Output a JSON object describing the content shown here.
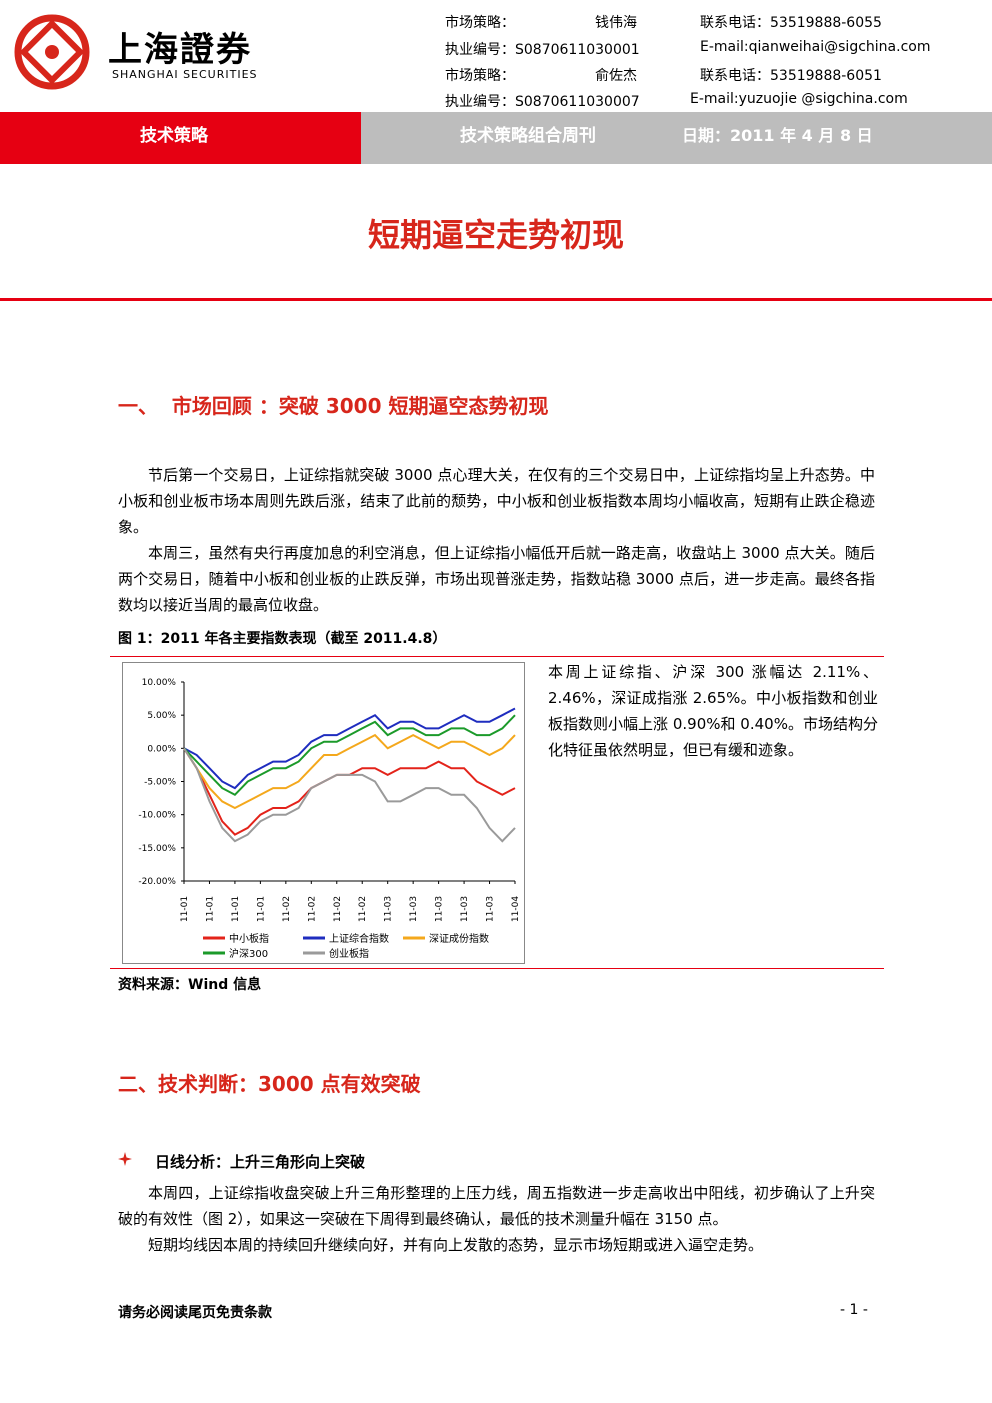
{
  "header": {
    "logo": "上海證券",
    "logo_en": "SHANGHAI SECURITIES",
    "contacts": [
      [
        "市场策略：",
        "钱伟海",
        "联系电话：53519888-6055"
      ],
      [
        "执业编号：S0870611030001",
        "",
        "E-mail:qianweihai@sigchina.com"
      ],
      [
        "市场策略：",
        "俞佐杰",
        "联系电话：53519888-6051"
      ],
      [
        "执业编号：S0870611030007",
        "",
        "E-mail:yuzuojie @sigchina.com"
      ]
    ]
  },
  "banner": {
    "left": "技术策略",
    "middle": "技术策略组合周刊",
    "date": "日期：2011 年 4 月 8 日"
  },
  "title": "短期逼空走势初现",
  "section1": {
    "heading": "一、  市场回顾 ：突破 3000 短期逼空态势初现",
    "paragraphs": [
      "节后第一个交易日，上证综指就突破 3000 点心理大关，在仅有的三个交易日中，上证综指均呈上升态势。中小板和创业板市场本周则先跌后涨，结束了此前的颓势，中小板和创业板指数本周均小幅收高，短期有止跌企稳迹象。",
      "本周三，虽然有央行再度加息的利空消息，但上证综指小幅低开后就一路走高，收盘站上 3000 点大关。随后两个交易日，随着中小板和创业板的止跌反弹，市场出现普涨走势，指数站稳 3000 点后，进一步走高。最终各指数均以接近当周的最高位收盘。"
    ],
    "figure_caption": "图 1：2011 年各主要指数表现（截至 2011.4.8）",
    "side_text": "本周上证综指、沪深 300 涨幅达 2.11%、2.46%，深证成指涨 2.65%。中小板指数和创业板指数则小幅上涨 0.90%和 0.40%。市场结构分化特征虽依然明显，但已有缓和迹象。",
    "source": "资料来源：Wind 信息"
  },
  "chart_data": {
    "type": "line",
    "categories": [
      "11-01",
      null,
      "11-01",
      null,
      "11-01",
      null,
      "11-01",
      null,
      "11-02",
      null,
      "11-02",
      null,
      "11-02",
      null,
      "11-02",
      null,
      "11-03",
      null,
      "11-03",
      null,
      "11-03",
      null,
      "11-03",
      null,
      "11-03",
      null,
      "11-04"
    ],
    "ylim": [
      -20,
      10
    ],
    "yticks": [
      {
        "value": -20,
        "label": "-20.00%"
      },
      {
        "value": -15,
        "label": "-15.00%"
      },
      {
        "value": -10,
        "label": "-10.00%"
      },
      {
        "value": -5,
        "label": "-5.00%"
      },
      {
        "value": 0,
        "label": "0.00%"
      },
      {
        "value": 5,
        "label": "5.00%"
      },
      {
        "value": 10,
        "label": "10.00%"
      }
    ],
    "series": [
      {
        "name": "中小板指",
        "color": "#e3231a",
        "values": [
          0,
          -3,
          -7,
          -11,
          -13,
          -12,
          -10,
          -9,
          -9,
          -8,
          -6,
          -5,
          -4,
          -4,
          -3,
          -3,
          -4,
          -3,
          -3,
          -3,
          -2,
          -3,
          -3,
          -5,
          -6,
          -7,
          -6
        ]
      },
      {
        "name": "上证综合指数",
        "color": "#1f2dbf",
        "values": [
          0,
          -1,
          -3,
          -5,
          -6,
          -4,
          -3,
          -2,
          -2,
          -1,
          1,
          2,
          2,
          3,
          4,
          5,
          3,
          4,
          4,
          3,
          3,
          4,
          5,
          4,
          4,
          5,
          6
        ]
      },
      {
        "name": "深证成份指数",
        "color": "#f4a81c",
        "values": [
          0,
          -3,
          -6,
          -8,
          -9,
          -8,
          -7,
          -6,
          -6,
          -5,
          -3,
          -1,
          -1,
          0,
          1,
          2,
          0,
          1,
          2,
          1,
          0,
          1,
          1,
          0,
          -1,
          0,
          2
        ]
      },
      {
        "name": "沪深300",
        "color": "#1b9a2a",
        "values": [
          0,
          -2,
          -4,
          -6,
          -7,
          -5,
          -4,
          -3,
          -3,
          -2,
          0,
          1,
          1,
          2,
          3,
          4,
          2,
          3,
          3,
          2,
          2,
          3,
          3,
          2,
          2,
          3,
          5
        ]
      },
      {
        "name": "创业板指",
        "color": "#9a9a9a",
        "values": [
          0,
          -3,
          -8,
          -12,
          -14,
          -13,
          -11,
          -10,
          -10,
          -9,
          -6,
          -5,
          -4,
          -4,
          -4,
          -5,
          -8,
          -8,
          -7,
          -6,
          -6,
          -7,
          -7,
          -9,
          -12,
          -14,
          -12
        ]
      }
    ]
  },
  "section2": {
    "heading": "二、技术判断：3000 点有效突破",
    "subheading": "日线分析：上升三角形向上突破",
    "paragraphs": [
      "本周四，上证综指收盘突破上升三角形整理的上压力线，周五指数进一步走高收出中阳线，初步确认了上升突破的有效性（图 2），如果这一突破在下周得到最终确认，最低的技术测量升幅在 3150 点。",
      "短期均线因本周的持续回升继续向好，并有向上发散的态势，显示市场短期或进入逼空走势。"
    ]
  },
  "footer": {
    "left": "请务必阅读尾页免责条款",
    "right": "- 1 -"
  }
}
